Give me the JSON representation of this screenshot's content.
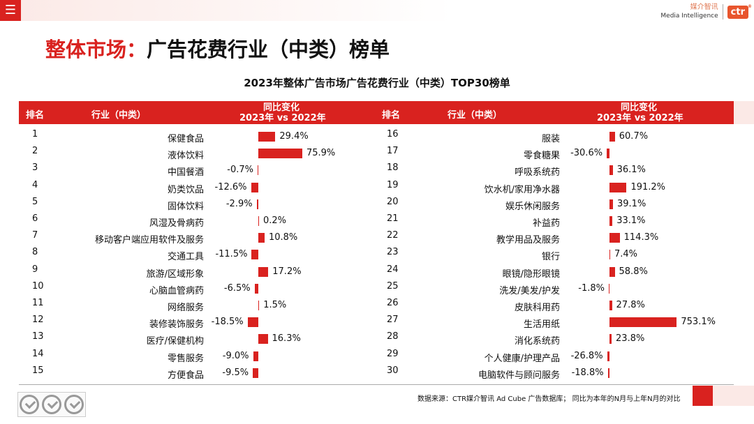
{
  "topbar": {
    "menu_icon": "menu-icon",
    "logo_cn": "媒介智讯",
    "logo_en": "Media Intelligence",
    "logo_mark": "ctr"
  },
  "page_title": {
    "accent": "整体市场：",
    "main": "广告花费行业（中类）榜单"
  },
  "table_headers": {
    "rank": "排名",
    "industry": "行业（中类）",
    "change_line1": "同比变化",
    "change_line2": "2023年 vs 2022年"
  },
  "source": "数据来源：CTR媒介智讯 Ad Cube 广告数据库；  同比为本年的N月与上年N月的对比",
  "chart_data": {
    "type": "bar",
    "title": "2023年整体广告市场广告花费行业（中类）TOP30榜单",
    "xlabel": "",
    "ylabel": "同比变化 2023年 vs 2022年",
    "unit": "%",
    "rows": [
      {
        "rank": "1",
        "name": "保健食品",
        "value": 29.4,
        "label": "29.4%"
      },
      {
        "rank": "2",
        "name": "液体饮料",
        "value": 75.9,
        "label": "75.9%"
      },
      {
        "rank": "3",
        "name": "中国餐酒",
        "value": -0.7,
        "label": "-0.7%"
      },
      {
        "rank": "4",
        "name": "奶类饮品",
        "value": -12.6,
        "label": "-12.6%"
      },
      {
        "rank": "5",
        "name": "固体饮料",
        "value": -2.9,
        "label": "-2.9%"
      },
      {
        "rank": "6",
        "name": "风湿及骨病药",
        "value": 0.2,
        "label": "0.2%"
      },
      {
        "rank": "7",
        "name": "移动客户端应用软件及服务",
        "value": 10.8,
        "label": "10.8%"
      },
      {
        "rank": "8",
        "name": "交通工具",
        "value": -11.5,
        "label": "-11.5%"
      },
      {
        "rank": "9",
        "name": "旅游/区域形象",
        "value": 17.2,
        "label": "17.2%"
      },
      {
        "rank": "10",
        "name": "心脑血管病药",
        "value": -6.5,
        "label": "-6.5%"
      },
      {
        "rank": "11",
        "name": "网络服务",
        "value": 1.5,
        "label": "1.5%"
      },
      {
        "rank": "12",
        "name": "装修装饰服务",
        "value": -18.5,
        "label": "-18.5%"
      },
      {
        "rank": "13",
        "name": "医疗/保健机构",
        "value": 16.3,
        "label": "16.3%"
      },
      {
        "rank": "14",
        "name": "零售服务",
        "value": -9.0,
        "label": "-9.0%"
      },
      {
        "rank": "15",
        "name": "方便食品",
        "value": -9.5,
        "label": "-9.5%"
      },
      {
        "rank": "16",
        "name": "服装",
        "value": 60.7,
        "label": "60.7%"
      },
      {
        "rank": "17",
        "name": "零食糖果",
        "value": -30.6,
        "label": "-30.6%"
      },
      {
        "rank": "18",
        "name": "呼吸系统药",
        "value": 36.1,
        "label": "36.1%"
      },
      {
        "rank": "19",
        "name": "饮水机/家用净水器",
        "value": 191.2,
        "label": "191.2%"
      },
      {
        "rank": "20",
        "name": "娱乐休闲服务",
        "value": 39.1,
        "label": "39.1%"
      },
      {
        "rank": "21",
        "name": "补益药",
        "value": 33.1,
        "label": "33.1%"
      },
      {
        "rank": "22",
        "name": "教学用品及服务",
        "value": 114.3,
        "label": "114.3%"
      },
      {
        "rank": "23",
        "name": "银行",
        "value": 7.4,
        "label": "7.4%"
      },
      {
        "rank": "24",
        "name": "眼镜/隐形眼镜",
        "value": 58.8,
        "label": "58.8%"
      },
      {
        "rank": "25",
        "name": "洗发/美发/护发",
        "value": -1.8,
        "label": "-1.8%"
      },
      {
        "rank": "26",
        "name": "皮肤科用药",
        "value": 27.8,
        "label": "27.8%"
      },
      {
        "rank": "27",
        "name": "生活用纸",
        "value": 753.1,
        "label": "753.1%"
      },
      {
        "rank": "28",
        "name": "消化系统药",
        "value": 23.8,
        "label": "23.8%"
      },
      {
        "rank": "29",
        "name": "个人健康/护理产品",
        "value": -26.8,
        "label": "-26.8%"
      },
      {
        "rank": "30",
        "name": "电脑软件与顾问服务",
        "value": -18.8,
        "label": "-18.8%"
      }
    ]
  }
}
